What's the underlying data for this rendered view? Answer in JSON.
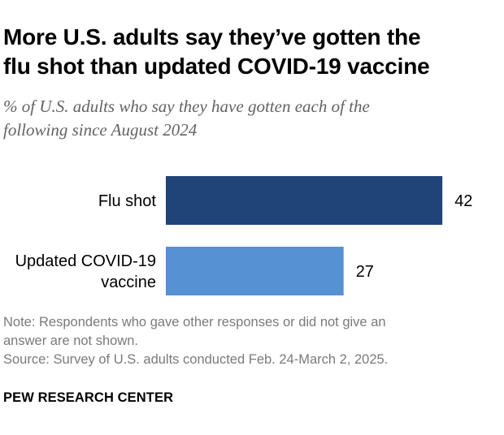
{
  "title_line1": "More U.S. adults say they’ve gotten the",
  "title_line2": "flu shot than updated COVID-19 vaccine",
  "subtitle_line1": "% of U.S. adults who say they have gotten each of the",
  "subtitle_line2": "following since August 2024",
  "chart_data": {
    "type": "bar",
    "orientation": "horizontal",
    "title": "More U.S. adults say they’ve gotten the flu shot than updated COVID-19 vaccine",
    "categories": [
      "Flu shot",
      "Updated COVID-19 vaccine"
    ],
    "category_lines": [
      [
        "Flu shot"
      ],
      [
        "Updated COVID-19",
        "vaccine"
      ]
    ],
    "values": [
      42,
      27
    ],
    "value_labels": [
      "42",
      "27"
    ],
    "xlim": [
      0,
      50
    ],
    "colors": [
      "#1f4477",
      "#5591d3"
    ],
    "xlabel": "",
    "ylabel": "",
    "grid": false,
    "legend": "none"
  },
  "note_line1": "Note: Respondents who gave other responses or did not give an",
  "note_line2": "answer are not shown.",
  "source": "Source: Survey of U.S. adults conducted Feb. 24-March 2, 2025.",
  "brand": "PEW RESEARCH CENTER"
}
